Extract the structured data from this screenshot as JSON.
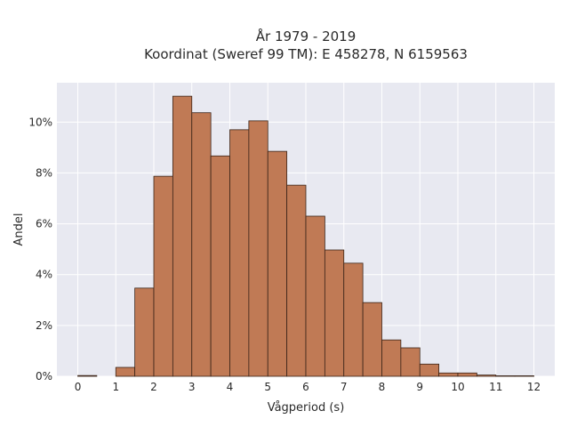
{
  "chart_data": {
    "type": "bar",
    "title_line1": "År 1979 - 2019",
    "title_line2": "Koordinat (Sweref 99 TM): E 458278, N 6159563",
    "xlabel": "Vågperiod (s)",
    "ylabel": "Andel",
    "bin_width": 0.5,
    "bin_starts": [
      0,
      0.5,
      1,
      1.5,
      2,
      2.5,
      3,
      3.5,
      4,
      4.5,
      5,
      5.5,
      6,
      6.5,
      7,
      7.5,
      8,
      8.5,
      9,
      9.5,
      10,
      10.5,
      11,
      11.5
    ],
    "values": [
      0.0003,
      0,
      0.0035,
      0.0347,
      0.0787,
      0.1102,
      0.1037,
      0.0867,
      0.097,
      0.1005,
      0.0885,
      0.0752,
      0.063,
      0.0497,
      0.0445,
      0.029,
      0.0143,
      0.0112,
      0.0048,
      0.0013,
      0.0013,
      0.0005,
      0.0002,
      0.0002
    ],
    "xlim": [
      -0.55,
      12.55
    ],
    "ylim": [
      0,
      0.1155
    ],
    "x_ticks": [
      "0",
      "1",
      "2",
      "3",
      "4",
      "5",
      "6",
      "7",
      "8",
      "9",
      "10",
      "11",
      "12"
    ],
    "y_ticks": [
      "0%",
      "2%",
      "4%",
      "6%",
      "8%",
      "10%"
    ],
    "grid": true,
    "colors": {
      "bar_fill": "#c07a55",
      "bar_stroke": "#3a2418",
      "plot_background": "#e8e9f1",
      "grid": "#ffffff"
    }
  }
}
